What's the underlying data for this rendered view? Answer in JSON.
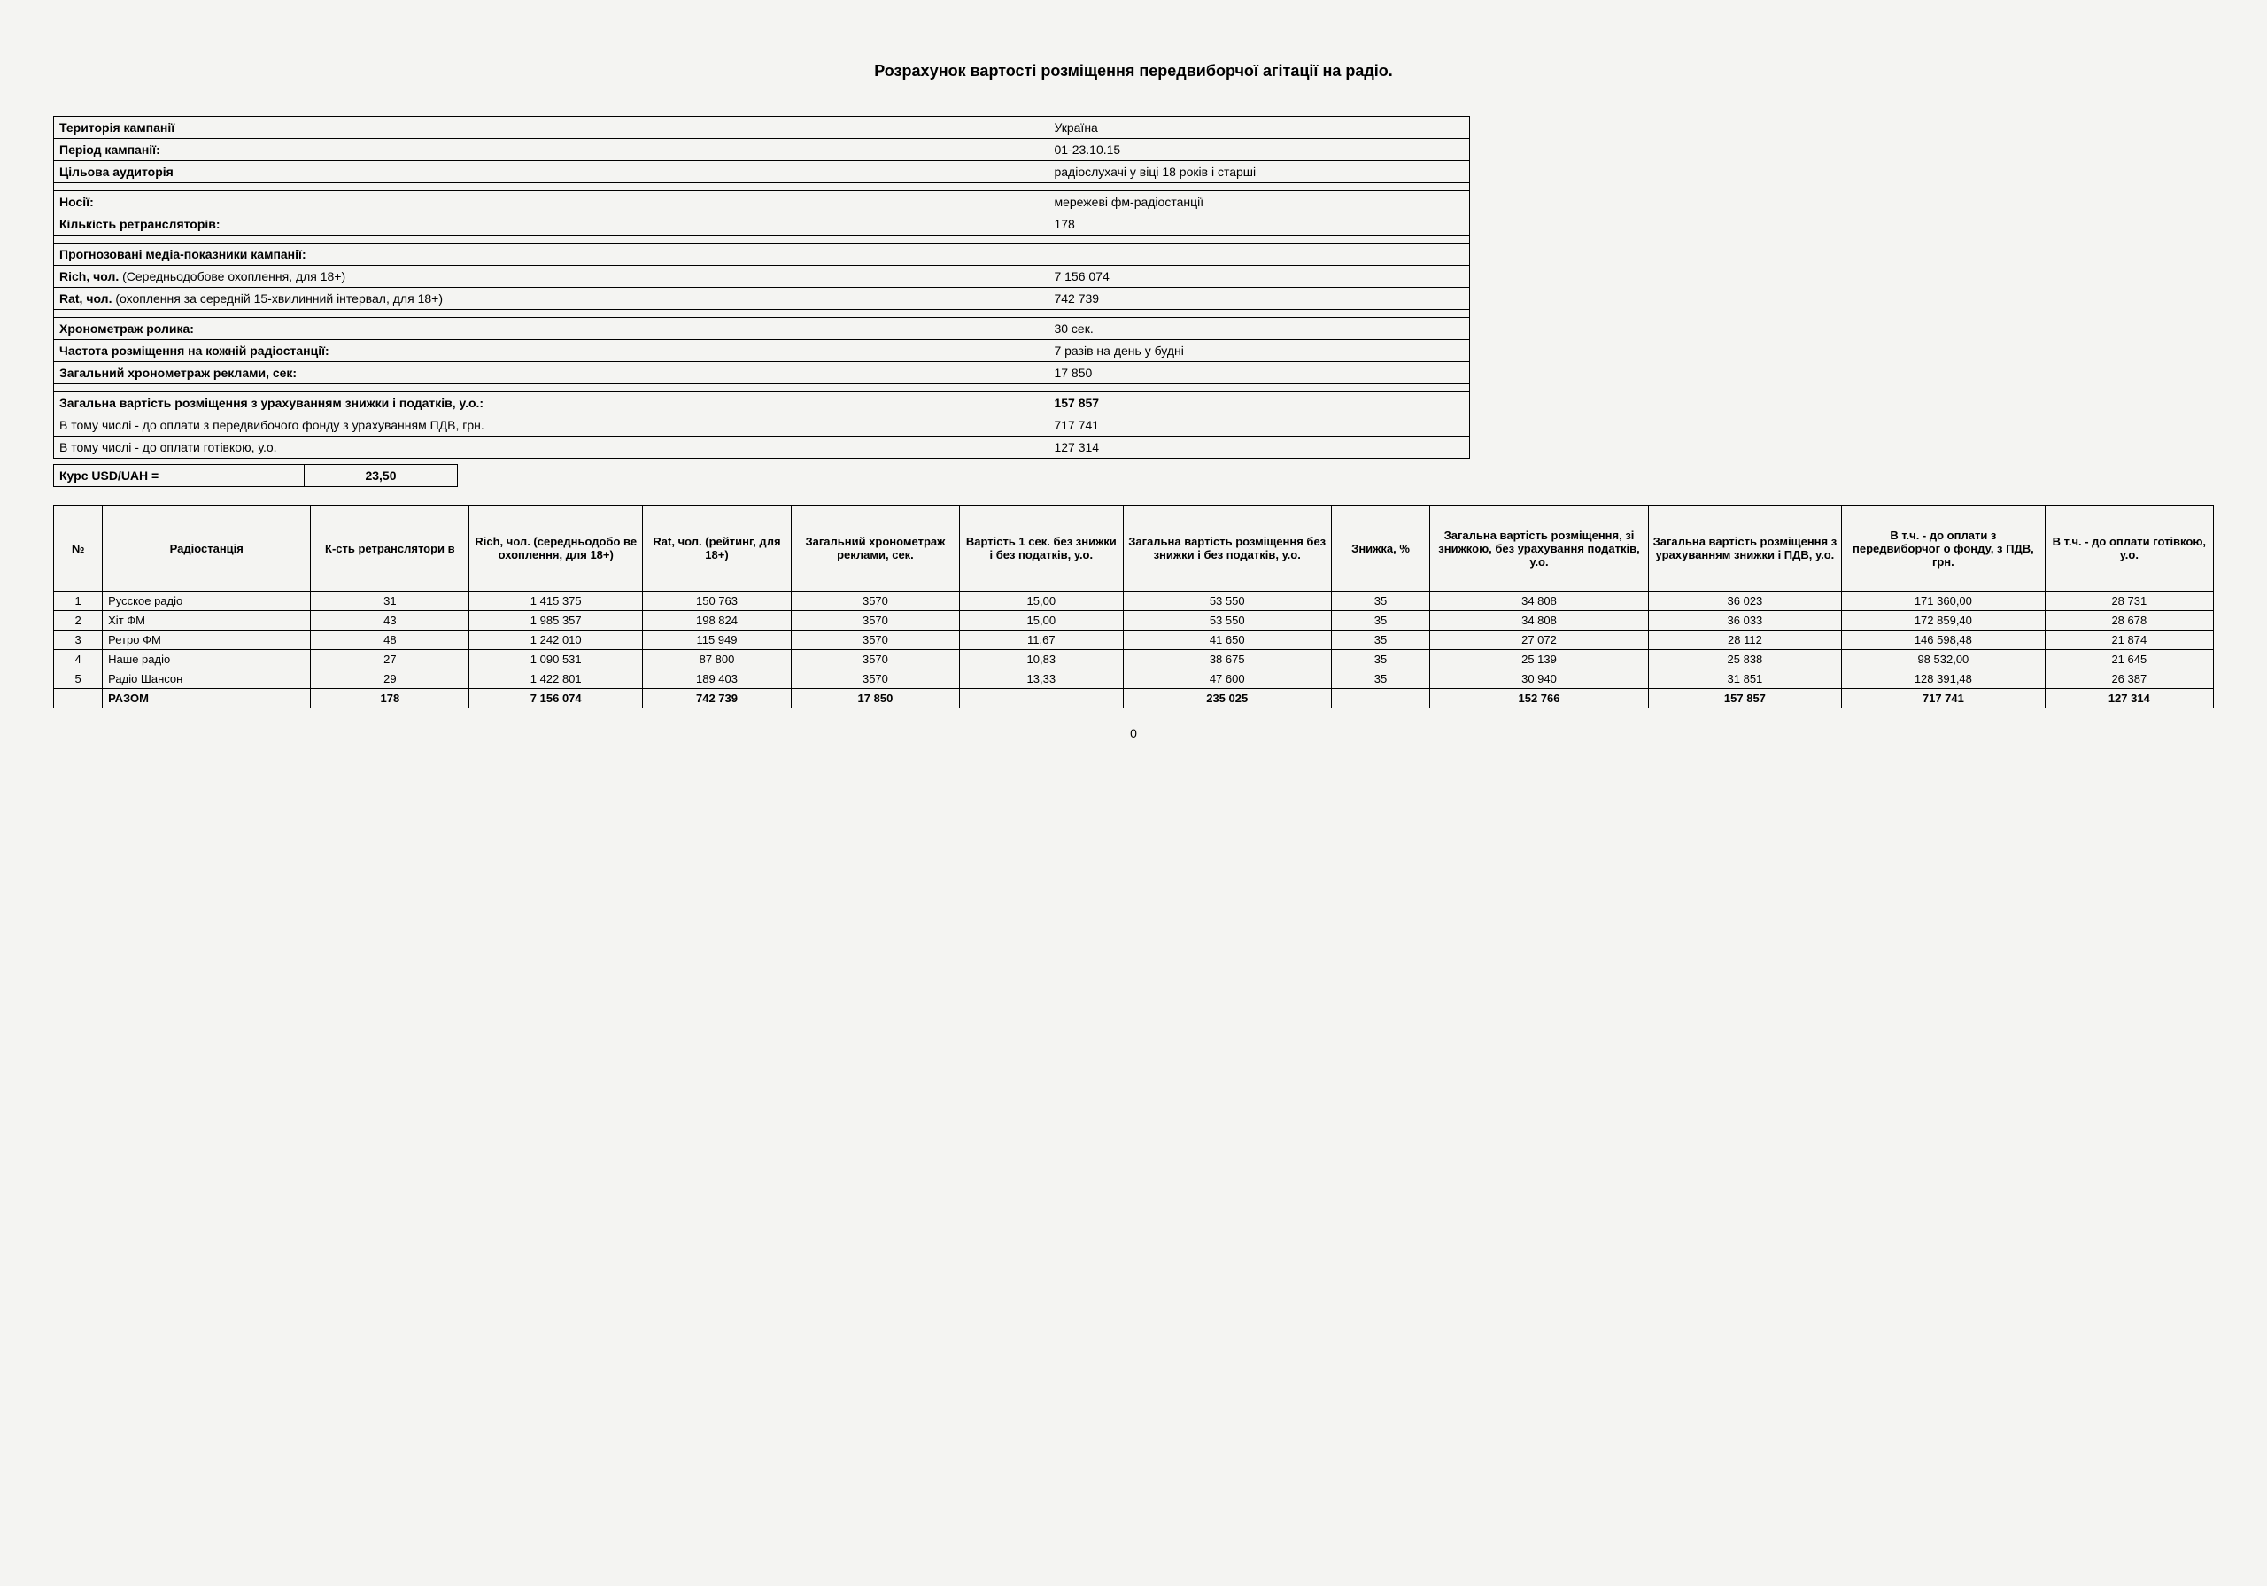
{
  "title": "Розрахунок вартості розміщення передвиборчої агітації на радіо.",
  "summary": {
    "rows": [
      {
        "label": "Територія кампанії",
        "value": "Україна",
        "bold_label": true
      },
      {
        "label": "Період кампанії:",
        "value": "01-23.10.15",
        "bold_label": true
      },
      {
        "label": "Цільова аудиторія",
        "value": "радіослухачі у віці 18 років і старші",
        "bold_label": true
      },
      {
        "blank": true
      },
      {
        "label": "Носії:",
        "value": "мережеві фм-радіостанції",
        "bold_label": true
      },
      {
        "label": "Кількість ретрансляторів:",
        "value": "178",
        "bold_label": true
      },
      {
        "blank": true
      },
      {
        "label": "Прогнозовані медіа-показники кампанії:",
        "value": "",
        "bold_label": true
      },
      {
        "label": "Rich, чол. (Середньодобове охоплення, для 18+)",
        "value": "7 156 074",
        "bold_label": false,
        "prefix_bold": "Rich, чол."
      },
      {
        "label": "Rat, чол.  (охоплення за середній 15-хвилинний інтервал, для 18+)",
        "value": "742 739",
        "bold_label": false,
        "prefix_bold": "Rat, чол."
      },
      {
        "blank": true
      },
      {
        "label": "Хронометраж ролика:",
        "value": "30 сек.",
        "bold_label": true
      },
      {
        "label": "Частота розміщення на кожній радіостанції:",
        "value": "7 разів на день у будні",
        "bold_label": true
      },
      {
        "label": "Загальний хронометраж реклами, сек:",
        "value": "17 850",
        "bold_label": true
      },
      {
        "blank": true
      },
      {
        "label": "Загальна вартість розміщення з урахуванням знижки і податків, у.о.:",
        "value": "157 857",
        "bold_label": true,
        "bold_value": true
      },
      {
        "label": "В тому числі - до оплати з передвибочого фонду з урахуванням ПДВ, грн.",
        "value": "717 741"
      },
      {
        "label": "В тому числі - до оплати готівкою, у.о.",
        "value": "127 314"
      }
    ]
  },
  "rate": {
    "label": "Курс USD/UAH =",
    "value": "23,50"
  },
  "table": {
    "columns": [
      "№",
      "Радіостанція",
      "К-сть ретранслятори в",
      "Rich, чол. (середньодобо ве охоплення, для 18+)",
      "Rat, чол. (рейтинг, для 18+)",
      "Загальний хронометраж реклами, сек.",
      "Вартість 1 сек. без знижки і без податків, у.о.",
      "Загальна вартість розміщення без знижки і без податків, у.о.",
      "Знижка, %",
      "Загальна вартість розміщення, зі знижкою, без урахування податків, у.о.",
      "Загальна вартість розміщення з урахуванням знижки і ПДВ, у.о.",
      "В т.ч. - до оплати з передвиборчог о фонду, з ПДВ, грн.",
      "В т.ч. - до оплати готівкою, у.о."
    ],
    "col_widths": [
      "40px",
      "200px",
      "150px",
      "165px",
      "140px",
      "160px",
      "155px",
      "200px",
      "90px",
      "210px",
      "185px",
      "195px",
      "160px"
    ],
    "rows": [
      [
        "1",
        "Русское радіо",
        "31",
        "1 415 375",
        "150 763",
        "3570",
        "15,00",
        "53 550",
        "35",
        "34 808",
        "36 023",
        "171 360,00",
        "28 731"
      ],
      [
        "2",
        "Хіт ФМ",
        "43",
        "1 985 357",
        "198 824",
        "3570",
        "15,00",
        "53 550",
        "35",
        "34 808",
        "36 033",
        "172 859,40",
        "28 678"
      ],
      [
        "3",
        "Ретро ФМ",
        "48",
        "1 242 010",
        "115 949",
        "3570",
        "11,67",
        "41 650",
        "35",
        "27 072",
        "28 112",
        "146 598,48",
        "21 874"
      ],
      [
        "4",
        "Наше радіо",
        "27",
        "1 090 531",
        "87 800",
        "3570",
        "10,83",
        "38 675",
        "35",
        "25 139",
        "25 838",
        "98 532,00",
        "21 645"
      ],
      [
        "5",
        "Радіо Шансон",
        "29",
        "1 422 801",
        "189 403",
        "3570",
        "13,33",
        "47 600",
        "35",
        "30 940",
        "31 851",
        "128 391,48",
        "26 387"
      ]
    ],
    "total": [
      "",
      "РАЗОМ",
      "178",
      "7 156 074",
      "742 739",
      "17 850",
      "",
      "235 025",
      "",
      "152 766",
      "157 857",
      "717 741",
      "127 314"
    ]
  },
  "page_number": "0"
}
